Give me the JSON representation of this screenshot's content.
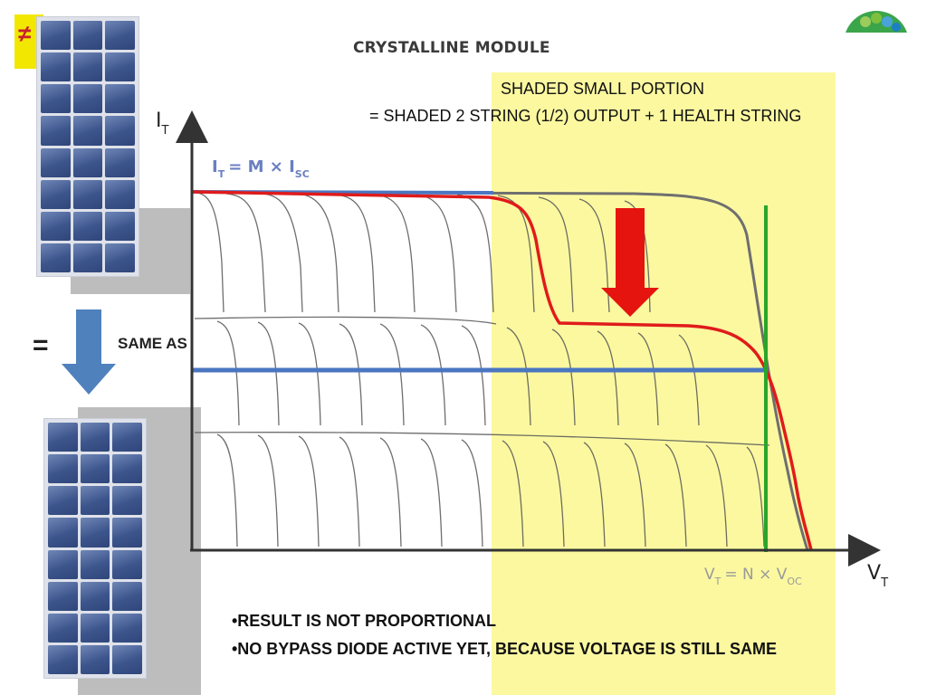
{
  "slide": {
    "title": "CRYSTALLINE MODULE",
    "caption_line1": "SHADED SMALL PORTION",
    "caption_line2": "= SHADED 2 STRING (1/2) OUTPUT + 1 HEALTH STRING",
    "equals": "=",
    "same_as": "SAME AS",
    "bullets": [
      "•RESULT IS NOT PROPORTIONAL",
      "•NO BYPASS DIODE ACTIVE YET, BECAUSE VOLTAGE IS STILL SAME"
    ]
  },
  "diagram": {
    "y_axis_label": "I",
    "y_axis_sub": "T",
    "x_axis_label": "V",
    "x_axis_sub": "T",
    "current_eq": "I",
    "current_eq_sub": "T",
    "current_eq_rest": "= M × I",
    "current_eq_rest_sub": "SC",
    "voltage_eq": "V",
    "voltage_eq_sub": "T",
    "voltage_eq_rest": "= N × V",
    "voltage_eq_rest_sub": "OC"
  },
  "colors": {
    "shade": "#fbf8a0",
    "red_curve": "#e01b1b",
    "blue_line": "#4a76c1",
    "green_line": "#2aa52a",
    "arrow_red": "#e5140f",
    "arrow_blue": "#4f81bd"
  },
  "icons": [
    "down-arrow-red-icon",
    "down-arrow-blue-icon",
    "logo-icon",
    "solar-panel-image"
  ]
}
